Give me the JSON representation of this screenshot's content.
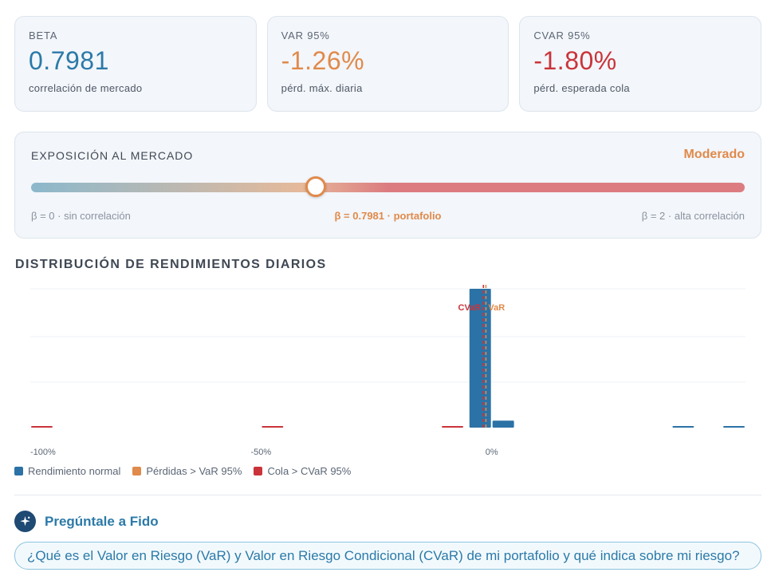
{
  "metrics": [
    {
      "label": "BETA",
      "value": "0.7981",
      "caption": "correlación de mercado"
    },
    {
      "label": "VAR 95%",
      "value": "-1.26%",
      "caption": "pérd. máx. diaria"
    },
    {
      "label": "CVAR 95%",
      "value": "-1.80%",
      "caption": "pérd. esperada cola"
    }
  ],
  "exposure": {
    "title": "EXPOSICIÓN AL MERCADO",
    "level": "Moderado",
    "beta": 0.7981,
    "scale_min": 0,
    "scale_max": 2,
    "left_label": "β = 0 · sin correlación",
    "center_label": "β = 0.7981 · portafolio",
    "right_label": "β = 2 · alta correlación"
  },
  "distribution": {
    "title": "DISTRIBUCIÓN DE RENDIMIENTOS DIARIOS",
    "legend": [
      "Rendimiento normal",
      "Pérdidas > VaR 95%",
      "Cola > CVaR 95%"
    ]
  },
  "chart_data": {
    "type": "bar",
    "x_tick_labels": [
      "-100%",
      "-50%",
      "0%"
    ],
    "xlim": [
      -100,
      55
    ],
    "ylim": [
      0,
      100
    ],
    "grid": true,
    "legend_placement": "bottom-left",
    "bars": [
      {
        "x_start": -100,
        "x_end": -95,
        "value": 1,
        "category": "cvar"
      },
      {
        "x_start": -50,
        "x_end": -45,
        "value": 1,
        "category": "cvar"
      },
      {
        "x_start": -11,
        "x_end": -6,
        "value": 1,
        "category": "cvar"
      },
      {
        "x_start": -5,
        "x_end": 0,
        "value": 100,
        "category": "normal"
      },
      {
        "x_start": 0,
        "x_end": 5,
        "value": 5,
        "category": "normal"
      },
      {
        "x_start": 39,
        "x_end": 44,
        "value": 0.5,
        "category": "normal"
      },
      {
        "x_start": 50,
        "x_end": 55,
        "value": 0.5,
        "category": "normal"
      }
    ],
    "reference_lines": [
      {
        "label": "VaR",
        "x": -1.26
      },
      {
        "label": "CVaR",
        "x": -1.8
      }
    ]
  },
  "colors": {
    "beta": "#2b7aa8",
    "var": "#e08a4b",
    "cvar": "#c9343a",
    "normal": "#2b72a6",
    "track_start": "#8bb8cc",
    "track_mid": "#e6b99a",
    "track_end": "#dc7c80"
  },
  "ask": {
    "label": "Pregúntale a Fido",
    "icon": "sparkle-icon",
    "question": "¿Qué es el Valor en Riesgo (VaR) y Valor en Riesgo Condicional (CVaR) de mi portafolio y qué indica sobre mi riesgo?"
  }
}
